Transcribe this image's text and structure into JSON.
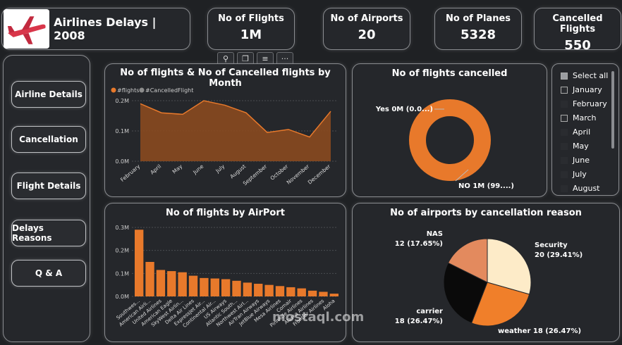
{
  "app": {
    "title": "Airlines Delays | 2008"
  },
  "kpis": [
    {
      "label": "No of Flights",
      "value": "1M"
    },
    {
      "label": "No of Airports",
      "value": "20"
    },
    {
      "label": "No of Planes",
      "value": "5328"
    },
    {
      "label": "Cancelled Flights",
      "value": "550"
    }
  ],
  "nav": [
    "Airline Details",
    "Cancellation",
    "Flight Details",
    "Delays Reasons",
    "Q & A"
  ],
  "toolbar": {
    "pin": "pin-icon",
    "copy": "copy-icon",
    "filter": "filter-icon",
    "more": "···"
  },
  "colors": {
    "accent": "#e8792b",
    "fill": "#8a4a1f",
    "grey": "#8c8c8c"
  },
  "slicer": {
    "items": [
      {
        "label": "Select all",
        "state": "on"
      },
      {
        "label": "January",
        "state": "box"
      },
      {
        "label": "February",
        "state": "none"
      },
      {
        "label": "March",
        "state": "box"
      },
      {
        "label": "April",
        "state": "none"
      },
      {
        "label": "May",
        "state": "none"
      },
      {
        "label": "June",
        "state": "none"
      },
      {
        "label": "July",
        "state": "none"
      },
      {
        "label": "August",
        "state": "none"
      }
    ]
  },
  "watermark": "mostaql.com",
  "chart_data": [
    {
      "type": "area",
      "title": "No of flights & No of Cancelled flights by Month",
      "legend": [
        "#flights",
        "#CancelledFlight"
      ],
      "categories": [
        "February",
        "April",
        "May",
        "June",
        "July",
        "August",
        "September",
        "October",
        "November",
        "December"
      ],
      "series": [
        {
          "name": "#flights",
          "values": [
            0.19,
            0.16,
            0.155,
            0.2,
            0.185,
            0.16,
            0.095,
            0.105,
            0.08,
            0.165
          ]
        },
        {
          "name": "#CancelledFlight",
          "values": [
            0,
            0,
            0,
            0,
            0,
            0,
            0,
            0,
            0,
            0
          ]
        }
      ],
      "yticks": [
        "0.0M",
        "0.1M",
        "0.2M"
      ],
      "ylim": [
        0,
        0.2
      ]
    },
    {
      "type": "pie",
      "title": "No of flights cancelled",
      "donut": true,
      "slices": [
        {
          "label": "Yes 0M (0.0...)",
          "value": 0.0
        },
        {
          "label": "NO 1M (99....)",
          "value": 99.9
        }
      ]
    },
    {
      "type": "bar",
      "title": "No of flights by AirPort",
      "categories": [
        "Southwes...",
        "American Airli...",
        "United Airlines",
        "American Eagle",
        "SkyWest Airlin...",
        "Delta Air Lines",
        "ExpressJet Air...",
        "Continental Air...",
        "US Airways",
        "Atlantic South...",
        "Northwest Airl...",
        "AirTran Airways",
        "JetBlue Airways",
        "Mesa Airlines",
        "Comair",
        "Pinnacle Airlines",
        "Alaska Airlines",
        "Frontier Airlines",
        "Aloha"
      ],
      "values": [
        0.29,
        0.15,
        0.115,
        0.11,
        0.105,
        0.09,
        0.08,
        0.078,
        0.075,
        0.068,
        0.06,
        0.055,
        0.05,
        0.045,
        0.04,
        0.035,
        0.025,
        0.02,
        0.012
      ],
      "yticks": [
        "0.0M",
        "0.1M",
        "0.2M",
        "0.3M"
      ],
      "ylim": [
        0,
        0.3
      ]
    },
    {
      "type": "pie",
      "title": "No of airports by cancellation reason",
      "slices": [
        {
          "label": "Security",
          "text": "20 (29.41%)",
          "value": 20,
          "color": "#fdebc8"
        },
        {
          "label": "weather",
          "text": "weather 18 (26.47%)",
          "value": 18,
          "color": "#f07f2a"
        },
        {
          "label": "carrier",
          "text": "18 (26.47%)",
          "value": 18,
          "color": "#0a0a0a"
        },
        {
          "label": "NAS",
          "text": "12 (17.65%)",
          "value": 12,
          "color": "#e38a5e"
        }
      ]
    }
  ]
}
